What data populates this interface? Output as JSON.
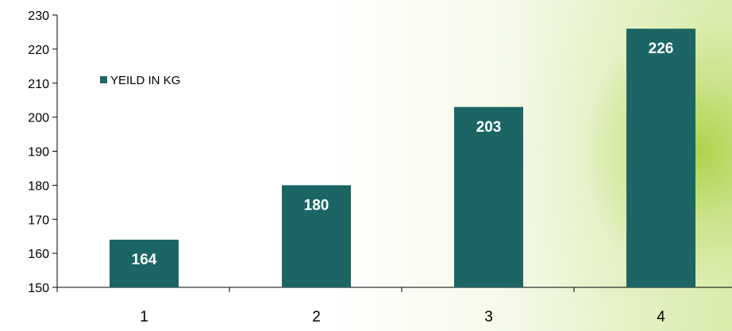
{
  "chart_data": {
    "type": "bar",
    "categories": [
      "1",
      "2",
      "3",
      "4"
    ],
    "series": [
      {
        "name": "YEILD IN KG",
        "values": [
          164,
          180,
          203,
          226
        ],
        "color": "#1b6565"
      }
    ],
    "data_labels": [
      "164",
      "180",
      "203",
      "226"
    ],
    "y_ticks": [
      "150",
      "160",
      "170",
      "180",
      "190",
      "200",
      "210",
      "220",
      "230"
    ],
    "ylim": [
      150,
      230
    ],
    "grid": false,
    "legend_position": "top-left",
    "title": "",
    "xlabel": "",
    "ylabel": ""
  }
}
